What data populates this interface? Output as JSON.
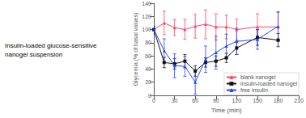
{
  "chart_data": {
    "type": "line",
    "annotations": [
      "Insulin-loaded glucose-sensitive",
      "nanogel suspension"
    ],
    "xlabel": "Time (min)",
    "ylabel": "Glycemia (% of basal values)",
    "x": [
      0,
      15,
      30,
      45,
      60,
      75,
      90,
      105,
      120,
      150,
      180
    ],
    "series": [
      {
        "name": "blank nanogel",
        "color": "#FF4466",
        "marker": "triangle",
        "values": [
          100,
          110,
          103,
          100,
          105,
          108,
          104,
          104,
          100,
          104,
          104
        ],
        "yerr": [
          5,
          18,
          12,
          15,
          18,
          22,
          20,
          18,
          16,
          20,
          22
        ]
      },
      {
        "name": "insulin-loaded nanogel",
        "color": "#111111",
        "marker": "square",
        "values": [
          100,
          50,
          48,
          52,
          37,
          50,
          52,
          57,
          72,
          88,
          84
        ],
        "yerr": [
          5,
          8,
          8,
          10,
          8,
          7,
          8,
          7,
          10,
          12,
          10
        ]
      },
      {
        "name": "free insulin",
        "color": "#2244FF",
        "marker": "triangle",
        "values": [
          100,
          68,
          45,
          44,
          20,
          55,
          65,
          75,
          82,
          85,
          105
        ],
        "yerr": [
          5,
          18,
          18,
          15,
          18,
          20,
          25,
          18,
          20,
          15,
          22
        ]
      }
    ],
    "xlim": [
      0,
      210
    ],
    "ylim": [
      0,
      140
    ],
    "xticks": [
      0,
      30,
      60,
      90,
      120,
      150,
      180,
      210
    ],
    "yticks": [
      0,
      20,
      40,
      60,
      80,
      100,
      120,
      140
    ],
    "legend": "lower right",
    "grid": false
  }
}
